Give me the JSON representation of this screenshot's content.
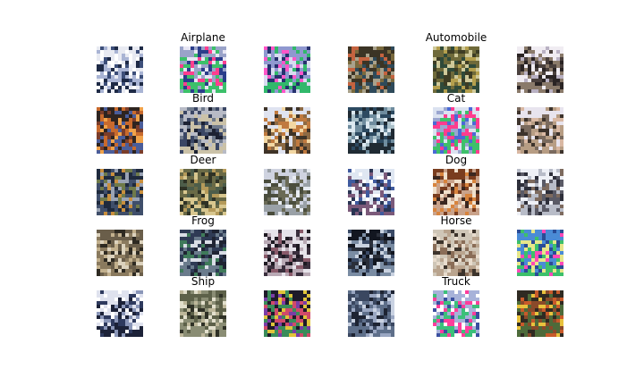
{
  "figure": {
    "classes": [
      {
        "label": "Airplane"
      },
      {
        "label": "Automobile"
      },
      {
        "label": "Bird"
      },
      {
        "label": "Cat"
      },
      {
        "label": "Deer"
      },
      {
        "label": "Dog"
      },
      {
        "label": "Frog"
      },
      {
        "label": "Horse"
      },
      {
        "label": "Ship"
      },
      {
        "label": "Truck"
      }
    ],
    "samples_per_class": 3,
    "samples": [
      {
        "palette": [
          "#e8eaf2",
          "#a9b4d4",
          "#3d4f7a",
          "#1e2a46",
          "#ffffff"
        ]
      },
      {
        "palette": [
          "#9aa3c9",
          "#e7e6f4",
          "#ff3e8f",
          "#3cc06a",
          "#2a3d8a"
        ]
      },
      {
        "palette": [
          "#8f98d0",
          "#d8dbf0",
          "#ff56c8",
          "#31b86b",
          "#26316e"
        ]
      },
      {
        "palette": [
          "#3b3425",
          "#7a6a3e",
          "#c4633f",
          "#2e4a5a",
          "#a9a28c"
        ]
      },
      {
        "palette": [
          "#6f6a3a",
          "#b49f4d",
          "#3d3c24",
          "#2f4a3a",
          "#cfc99a"
        ]
      },
      {
        "palette": [
          "#f0ecf2",
          "#b9b1c3",
          "#4a403d",
          "#8a7a6a",
          "#2a2424"
        ]
      },
      {
        "palette": [
          "#2e2420",
          "#c86a2d",
          "#f0a24a",
          "#4a5d9a",
          "#7b3d2a"
        ]
      },
      {
        "palette": [
          "#b8bbc6",
          "#3a4664",
          "#1d2233",
          "#cbc2a8",
          "#6f7a8c"
        ]
      },
      {
        "palette": [
          "#dfe3f0",
          "#8d6a44",
          "#c07a3f",
          "#3e3327",
          "#f2d7a3"
        ]
      },
      {
        "palette": [
          "#2d4a61",
          "#dce8f0",
          "#6f8c9e",
          "#1f2a33",
          "#a9bfc8"
        ]
      },
      {
        "palette": [
          "#dbe2f0",
          "#ff3c8f",
          "#4a6ad6",
          "#3ec06a",
          "#9aa6d0"
        ]
      },
      {
        "palette": [
          "#e8e4ee",
          "#7a6a5e",
          "#3d332c",
          "#b79d84",
          "#d9b8a3"
        ]
      },
      {
        "palette": [
          "#1f2a3d",
          "#6f7a4a",
          "#c98f3d",
          "#3f4e6a",
          "#9aa3b4"
        ]
      },
      {
        "palette": [
          "#6a6a46",
          "#b59a5a",
          "#2f3225",
          "#d8c78f",
          "#4d5d4a"
        ]
      },
      {
        "palette": [
          "#cfd3e0",
          "#6a6a56",
          "#4a4d3d",
          "#9aa1a7",
          "#e8ecf2"
        ]
      },
      {
        "palette": [
          "#dfe7f2",
          "#3f5a9e",
          "#ffffff",
          "#7b5a7a",
          "#2a3553"
        ]
      },
      {
        "palette": [
          "#7a3d1f",
          "#d8843d",
          "#3a2720",
          "#c9a28a",
          "#f0e0cc"
        ]
      },
      {
        "palette": [
          "#eef0f6",
          "#5a5a66",
          "#2e2f3a",
          "#b8bcc8",
          "#7d6a5e"
        ]
      },
      {
        "palette": [
          "#6a5e4a",
          "#c2b08d",
          "#2e2a22",
          "#8a7a5e",
          "#dcd2bd"
        ]
      },
      {
        "palette": [
          "#2f3b55",
          "#d9dde6",
          "#1f2433",
          "#6a7b8c",
          "#3f7a5a"
        ]
      },
      {
        "palette": [
          "#e6e3ea",
          "#3a2f3d",
          "#8a5a6a",
          "#b8a9b4",
          "#1e1a22"
        ]
      },
      {
        "palette": [
          "#121620",
          "#c9d2e0",
          "#3a4a66",
          "#7a8ca3",
          "#2a2f3a"
        ]
      },
      {
        "palette": [
          "#cfc6b7",
          "#8a6d57",
          "#3d342c",
          "#b9a48e",
          "#e8dccd"
        ]
      },
      {
        "palette": [
          "#4a8bd6",
          "#ff48b8",
          "#e6e68a",
          "#3cc06a",
          "#2a4c96"
        ]
      },
      {
        "palette": [
          "#dfe2ee",
          "#2e3a5e",
          "#8a96b8",
          "#1c2238",
          "#ffffff"
        ]
      },
      {
        "palette": [
          "#5d6149",
          "#bdb79a",
          "#2f3126",
          "#8a8d74",
          "#e2dfcc"
        ]
      },
      {
        "palette": [
          "#1e1a2a",
          "#7a3da6",
          "#e0c43a",
          "#3a8c5a",
          "#d04a6a"
        ]
      },
      {
        "palette": [
          "#3a4760",
          "#9aa7c2",
          "#1e2433",
          "#5e6f8a",
          "#c9d2e2"
        ]
      },
      {
        "palette": [
          "#a7b2d9",
          "#ffffff",
          "#ff3e9c",
          "#3cc07a",
          "#3a4fa0"
        ]
      },
      {
        "palette": [
          "#2f2a22",
          "#c85a2a",
          "#e8c23d",
          "#4d6a3a",
          "#8a4a2a"
        ]
      }
    ]
  }
}
